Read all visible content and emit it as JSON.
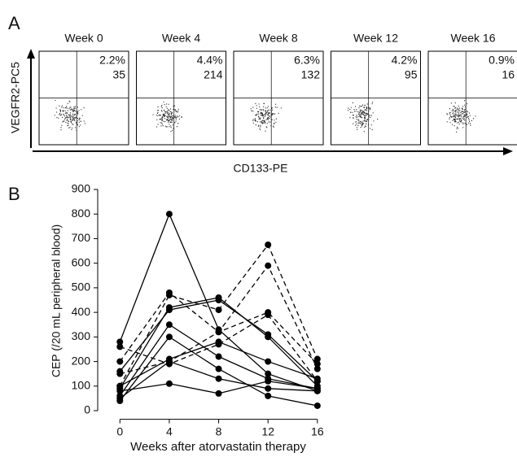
{
  "panel_a": {
    "label": "A",
    "y_label": "VEGFR2-PC5",
    "x_label": "CD133-PE",
    "plots": [
      {
        "title": "Week 0",
        "percent": "2.2%",
        "count": 35
      },
      {
        "title": "Week 4",
        "percent": "4.4%",
        "count": 214
      },
      {
        "title": "Week 8",
        "percent": "6.3%",
        "count": 132
      },
      {
        "title": "Week 12",
        "percent": "4.2%",
        "count": 95
      },
      {
        "title": "Week 16",
        "percent": "0.9%",
        "count": 16
      }
    ]
  },
  "chart_data": {
    "type": "line",
    "panel_label": "B",
    "xlabel": "Weeks after atorvastatin therapy",
    "ylabel": "CEP (/20 mL peripheral blood)",
    "x": [
      0,
      4,
      8,
      12,
      16
    ],
    "xlim": [
      -1.8,
      17
    ],
    "xticks": [
      0,
      4,
      8,
      12,
      16
    ],
    "ylim": [
      -35,
      900
    ],
    "yticks": [
      0,
      100,
      200,
      300,
      400,
      500,
      600,
      700,
      800,
      900
    ],
    "series": [
      {
        "color": "#000000",
        "style": "solid",
        "values": [
          280,
          800,
          330,
          150,
          80
        ]
      },
      {
        "color": "#000000",
        "style": "solid",
        "values": [
          160,
          410,
          450,
          310,
          120
        ]
      },
      {
        "color": "#000000",
        "style": "solid",
        "values": [
          90,
          420,
          460,
          300,
          100
        ]
      },
      {
        "color": "#000000",
        "style": "solid",
        "values": [
          60,
          350,
          220,
          130,
          90
        ]
      },
      {
        "color": "#000000",
        "style": "solid",
        "values": [
          40,
          300,
          170,
          60,
          20
        ]
      },
      {
        "color": "#000000",
        "style": "solid",
        "values": [
          50,
          200,
          130,
          90,
          80
        ]
      },
      {
        "color": "#000000",
        "style": "solid",
        "values": [
          80,
          110,
          70,
          120,
          90
        ]
      },
      {
        "color": "#000000",
        "style": "solid",
        "values": [
          100,
          210,
          280,
          200,
          130
        ]
      },
      {
        "color": "#000000",
        "style": "dashed",
        "values": [
          200,
          480,
          320,
          590,
          170
        ]
      },
      {
        "color": "#000000",
        "style": "dashed",
        "values": [
          100,
          470,
          410,
          675,
          210
        ]
      },
      {
        "color": "#000000",
        "style": "dashed",
        "values": [
          260,
          190,
          270,
          390,
          120
        ]
      },
      {
        "color": "#000000",
        "style": "dashed",
        "values": [
          150,
          200,
          320,
          400,
          190
        ]
      }
    ]
  }
}
